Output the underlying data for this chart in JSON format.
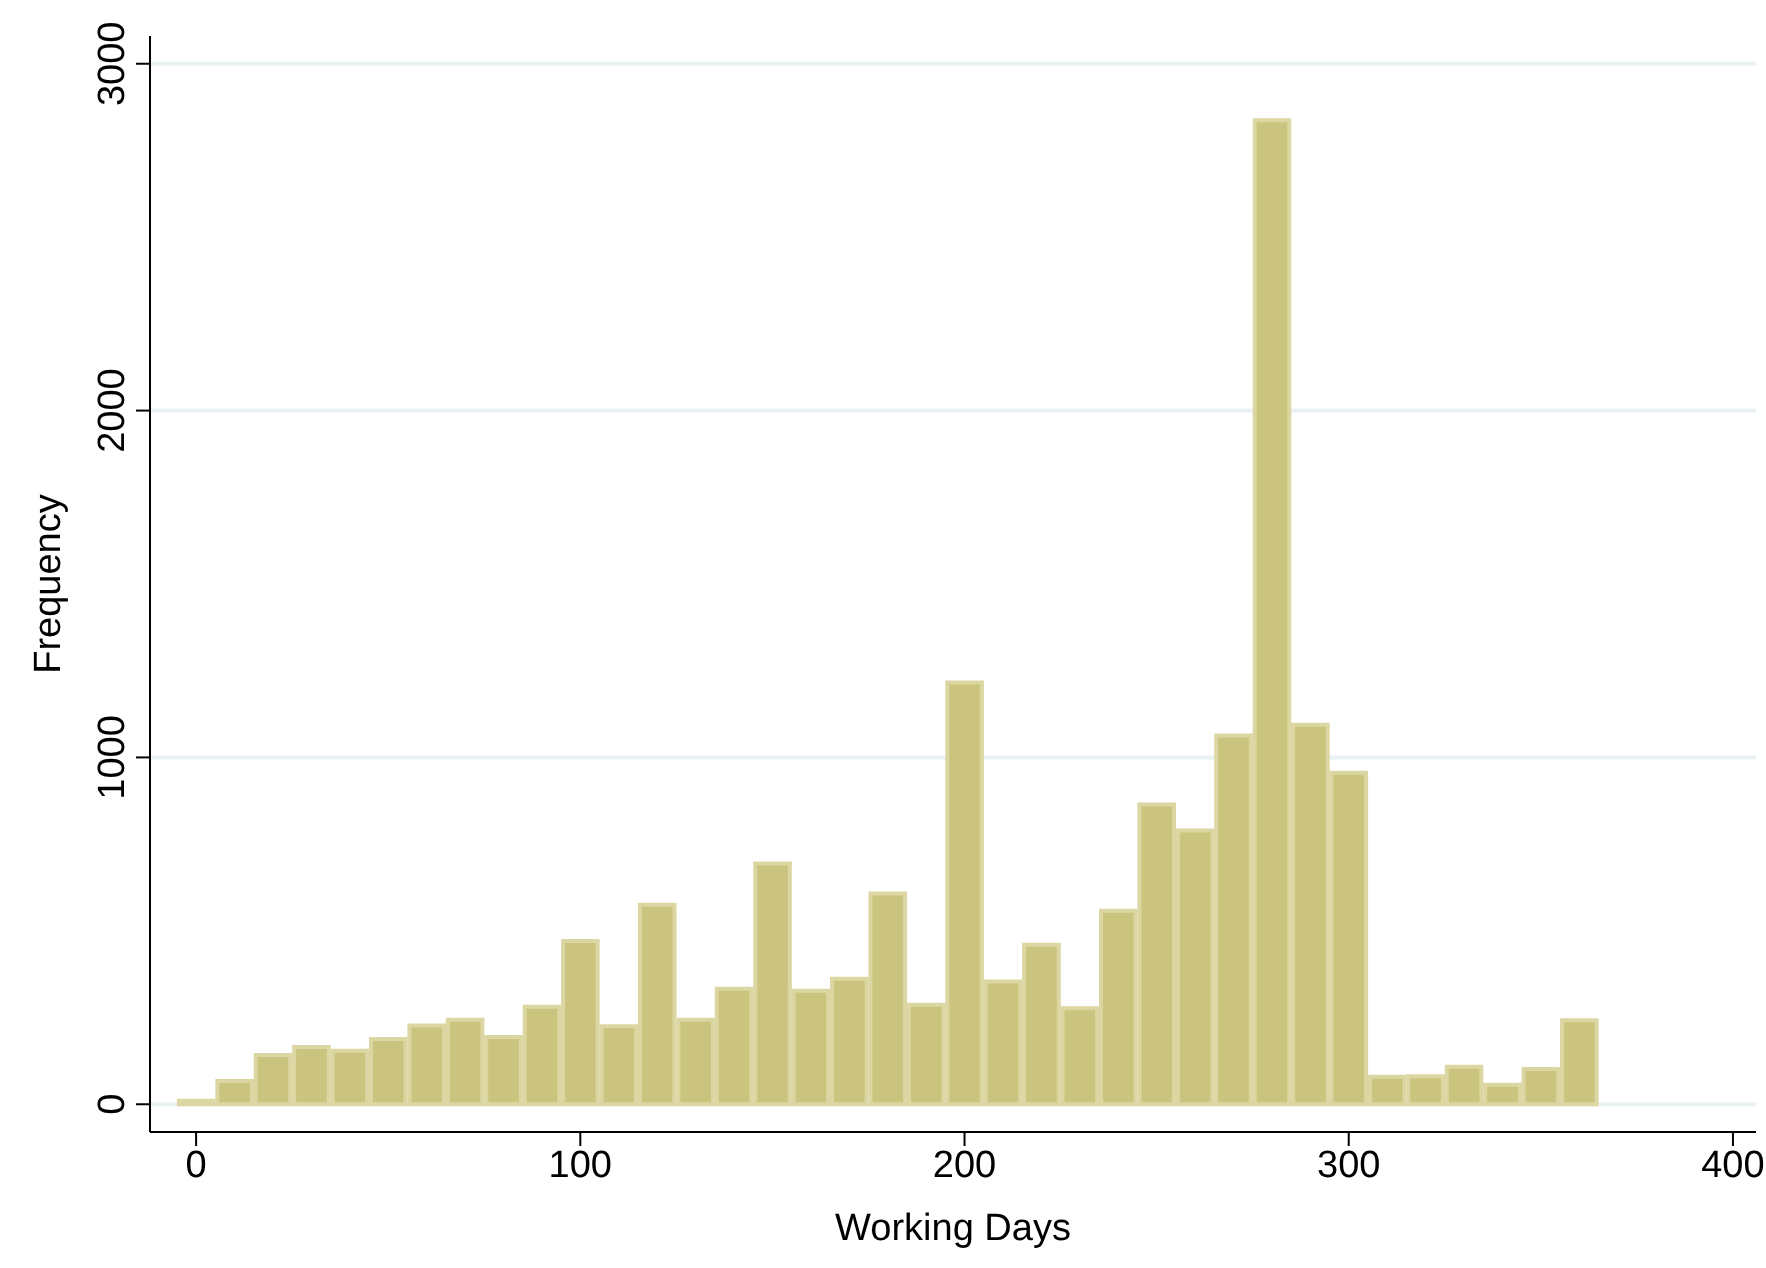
{
  "chart_data": {
    "type": "histogram",
    "xlabel": "Working Days",
    "ylabel": "Frequency",
    "bins": [
      -5,
      5,
      15,
      25,
      35,
      45,
      55,
      65,
      75,
      85,
      95,
      105,
      115,
      125,
      135,
      145,
      155,
      165,
      175,
      185,
      195,
      205,
      215,
      225,
      235,
      245,
      255,
      265,
      275,
      285,
      295,
      305,
      315,
      325,
      335,
      345,
      355,
      365
    ],
    "values": [
      10,
      67,
      142,
      165,
      154,
      188,
      227,
      244,
      194,
      281,
      471,
      225,
      575,
      244,
      333,
      694,
      327,
      362,
      608,
      287,
      1216,
      354,
      460,
      277,
      558,
      864,
      789,
      1063,
      2837,
      1094,
      956,
      79,
      81,
      108,
      56,
      102,
      242
    ],
    "color": "#cbc47e",
    "xlim": [
      -12,
      406
    ],
    "xticks": [
      0,
      100,
      200,
      300,
      400
    ],
    "ylim": [
      -80,
      3080
    ],
    "yticks": [
      0,
      1000,
      2000,
      3000
    ],
    "grid": "y"
  }
}
